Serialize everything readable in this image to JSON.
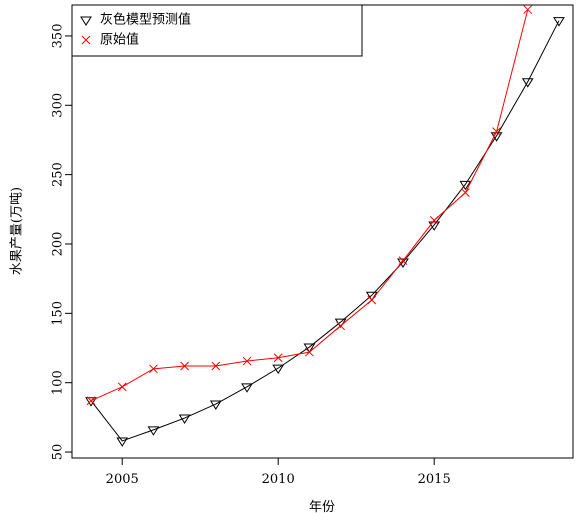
{
  "chart_data": {
    "type": "line",
    "x_label": "年份",
    "y_label": "水果产量(万吨)",
    "x": [
      2004,
      2005,
      2006,
      2007,
      2008,
      2009,
      2010,
      2011,
      2012,
      2013,
      2014,
      2015,
      2016,
      2017,
      2018,
      2019
    ],
    "series": [
      {
        "name": "灰色模型预测值",
        "color": "#000000",
        "marker": "triangle-down",
        "values": [
          87,
          58,
          66,
          74.5,
          84.6,
          97,
          110.5,
          125.7,
          143.7,
          163,
          187,
          213.7,
          243,
          278,
          317,
          361
        ]
      },
      {
        "name": "原始值",
        "color": "#ff0000",
        "marker": "x",
        "values": [
          87,
          97,
          110,
          112,
          112,
          115.6,
          118,
          122,
          141,
          159.6,
          188,
          217,
          237,
          281,
          369,
          null
        ]
      }
    ],
    "xlim": [
      2003.39,
      2019.45
    ],
    "xticks": [
      2005,
      2010,
      2015
    ],
    "ylim": [
      45.7,
      372.3
    ],
    "yticks": [
      50,
      100,
      150,
      200,
      250,
      300,
      350
    ],
    "legend": "top-left"
  }
}
